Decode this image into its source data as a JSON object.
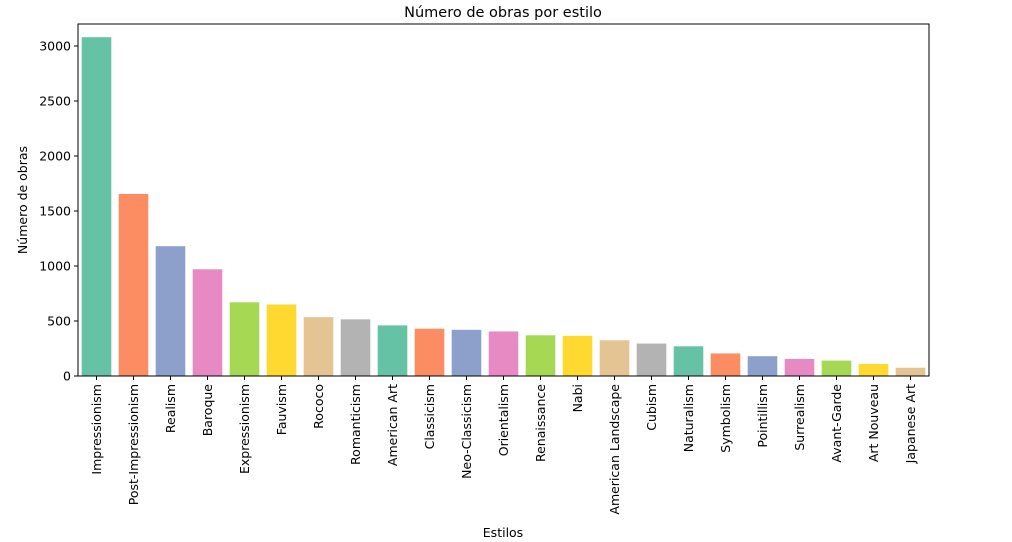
{
  "chart_data": {
    "type": "bar",
    "title": "Número de obras por estilo",
    "xlabel": "Estilos",
    "ylabel": "Número de obras",
    "categories": [
      "Impressionism",
      "Post-Impressionism",
      "Realism",
      "Baroque",
      "Expressionism",
      "Fauvism",
      "Rococo",
      "Romanticism",
      "American Art",
      "Classicism",
      "Neo-Classicism",
      "Orientalism",
      "Renaissance",
      "Nabi",
      "American Landscape",
      "Cubism",
      "Naturalism",
      "Symbolism",
      "Pointillism",
      "Surrealism",
      "Avant-Garde",
      "Art Nouveau",
      "Japanese Art"
    ],
    "values": [
      3080,
      1655,
      1180,
      970,
      670,
      650,
      535,
      515,
      460,
      430,
      420,
      405,
      370,
      365,
      325,
      295,
      270,
      205,
      180,
      155,
      140,
      110,
      75
    ],
    "ylim": [
      0,
      3200
    ],
    "yticks": [
      0,
      500,
      1000,
      1500,
      2000,
      2500,
      3000
    ],
    "grid": false,
    "legend": "none",
    "colors": [
      "#66c2a5",
      "#fc8d62",
      "#8da0cb",
      "#e78ac3",
      "#a6d854",
      "#ffd92f",
      "#e5c494",
      "#b3b3b3"
    ]
  }
}
